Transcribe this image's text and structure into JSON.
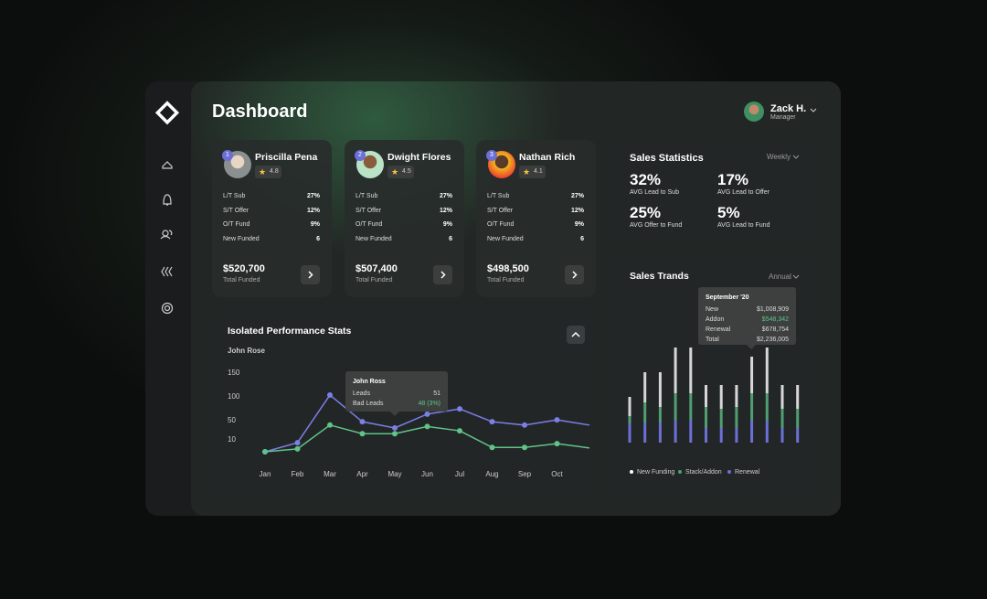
{
  "header": {
    "title": "Dashboard",
    "user": {
      "name": "Zack H.",
      "role": "Manager"
    }
  },
  "agents": [
    {
      "rank": 1,
      "name": "Priscilla Pena",
      "rating": 4.8,
      "stats": [
        {
          "label": "L/T Sub",
          "value": "27%"
        },
        {
          "label": "S/T Offer",
          "value": "12%"
        },
        {
          "label": "O/T Fund",
          "value": "9%"
        },
        {
          "label": "New Funded",
          "value": "6"
        }
      ],
      "total": "$520,700",
      "total_label": "Total Funded"
    },
    {
      "rank": 2,
      "name": "Dwight Flores",
      "rating": 4.5,
      "stats": [
        {
          "label": "L/T Sub",
          "value": "27%"
        },
        {
          "label": "S/T Offer",
          "value": "12%"
        },
        {
          "label": "O/T Fund",
          "value": "9%"
        },
        {
          "label": "New Funded",
          "value": "6"
        }
      ],
      "total": "$507,400",
      "total_label": "Total Funded"
    },
    {
      "rank": 3,
      "name": "Nathan Rich",
      "rating": 4.1,
      "stats": [
        {
          "label": "L/T Sub",
          "value": "27%"
        },
        {
          "label": "S/T Offer",
          "value": "12%"
        },
        {
          "label": "O/T Fund",
          "value": "9%"
        },
        {
          "label": "New Funded",
          "value": "6"
        }
      ],
      "total": "$498,500",
      "total_label": "Total Funded"
    }
  ],
  "sales_statistics": {
    "title": "Sales Statistics",
    "period": "Weekly",
    "items": [
      {
        "value": "32%",
        "label": "AVG Lead to Sub"
      },
      {
        "value": "17%",
        "label": "AVG Lead to Offer"
      },
      {
        "value": "25%",
        "label": "AVG Offer to Fund"
      },
      {
        "value": "5%",
        "label": "AVG Lead to Fund"
      }
    ]
  },
  "chart_data": [
    {
      "type": "line",
      "title": "Isolated Performance Stats",
      "subtitle": "John Rose",
      "categories": [
        "Jan",
        "Feb",
        "Mar",
        "Apr",
        "May",
        "Jun",
        "Jul",
        "Aug",
        "Sep",
        "Oct",
        null
      ],
      "ylim": [
        -20,
        160
      ],
      "yticks": [
        10,
        50,
        100,
        150
      ],
      "series": [
        {
          "color": "#7b7fe6",
          "values": [
            -15,
            4,
            104,
            48,
            35,
            64,
            75,
            48,
            41,
            52,
            41
          ]
        },
        {
          "color": "#5fc488",
          "values": [
            -15,
            -9,
            41,
            23,
            23,
            38,
            29,
            -6,
            -6,
            2,
            -7
          ]
        }
      ],
      "tooltip": {
        "title": "John Ross",
        "rows": [
          {
            "label": "Leads",
            "value": "51"
          },
          {
            "label": "Bad Leads",
            "value": "48 (3%)"
          }
        ]
      }
    },
    {
      "type": "bar",
      "stacked": true,
      "title": "Sales Trands",
      "period": "Annual",
      "ylim": [
        0,
        110
      ],
      "series": [
        {
          "name": "New Funding",
          "color": "#d6d6d6",
          "values": [
            21,
            33,
            38,
            50,
            50,
            24,
            26,
            24,
            40,
            50,
            26,
            26
          ]
        },
        {
          "name": "Stack/Addon",
          "color": "#4f9f72",
          "values": [
            8,
            22,
            17,
            29,
            29,
            23,
            21,
            23,
            30,
            30,
            21,
            21
          ]
        },
        {
          "name": "Renewal",
          "color": "#6c70d6",
          "values": [
            21,
            22,
            22,
            25,
            25,
            16,
            16,
            16,
            24,
            24,
            16,
            16
          ]
        }
      ],
      "tooltip": {
        "title": "September '20",
        "rows": [
          {
            "label": "New",
            "value": "$1,008,909"
          },
          {
            "label": "Addon",
            "value": "$548,342"
          },
          {
            "label": "Renewal",
            "value": "$678,754"
          },
          {
            "label": "Total",
            "value": "$2,236,005"
          }
        ]
      }
    }
  ]
}
